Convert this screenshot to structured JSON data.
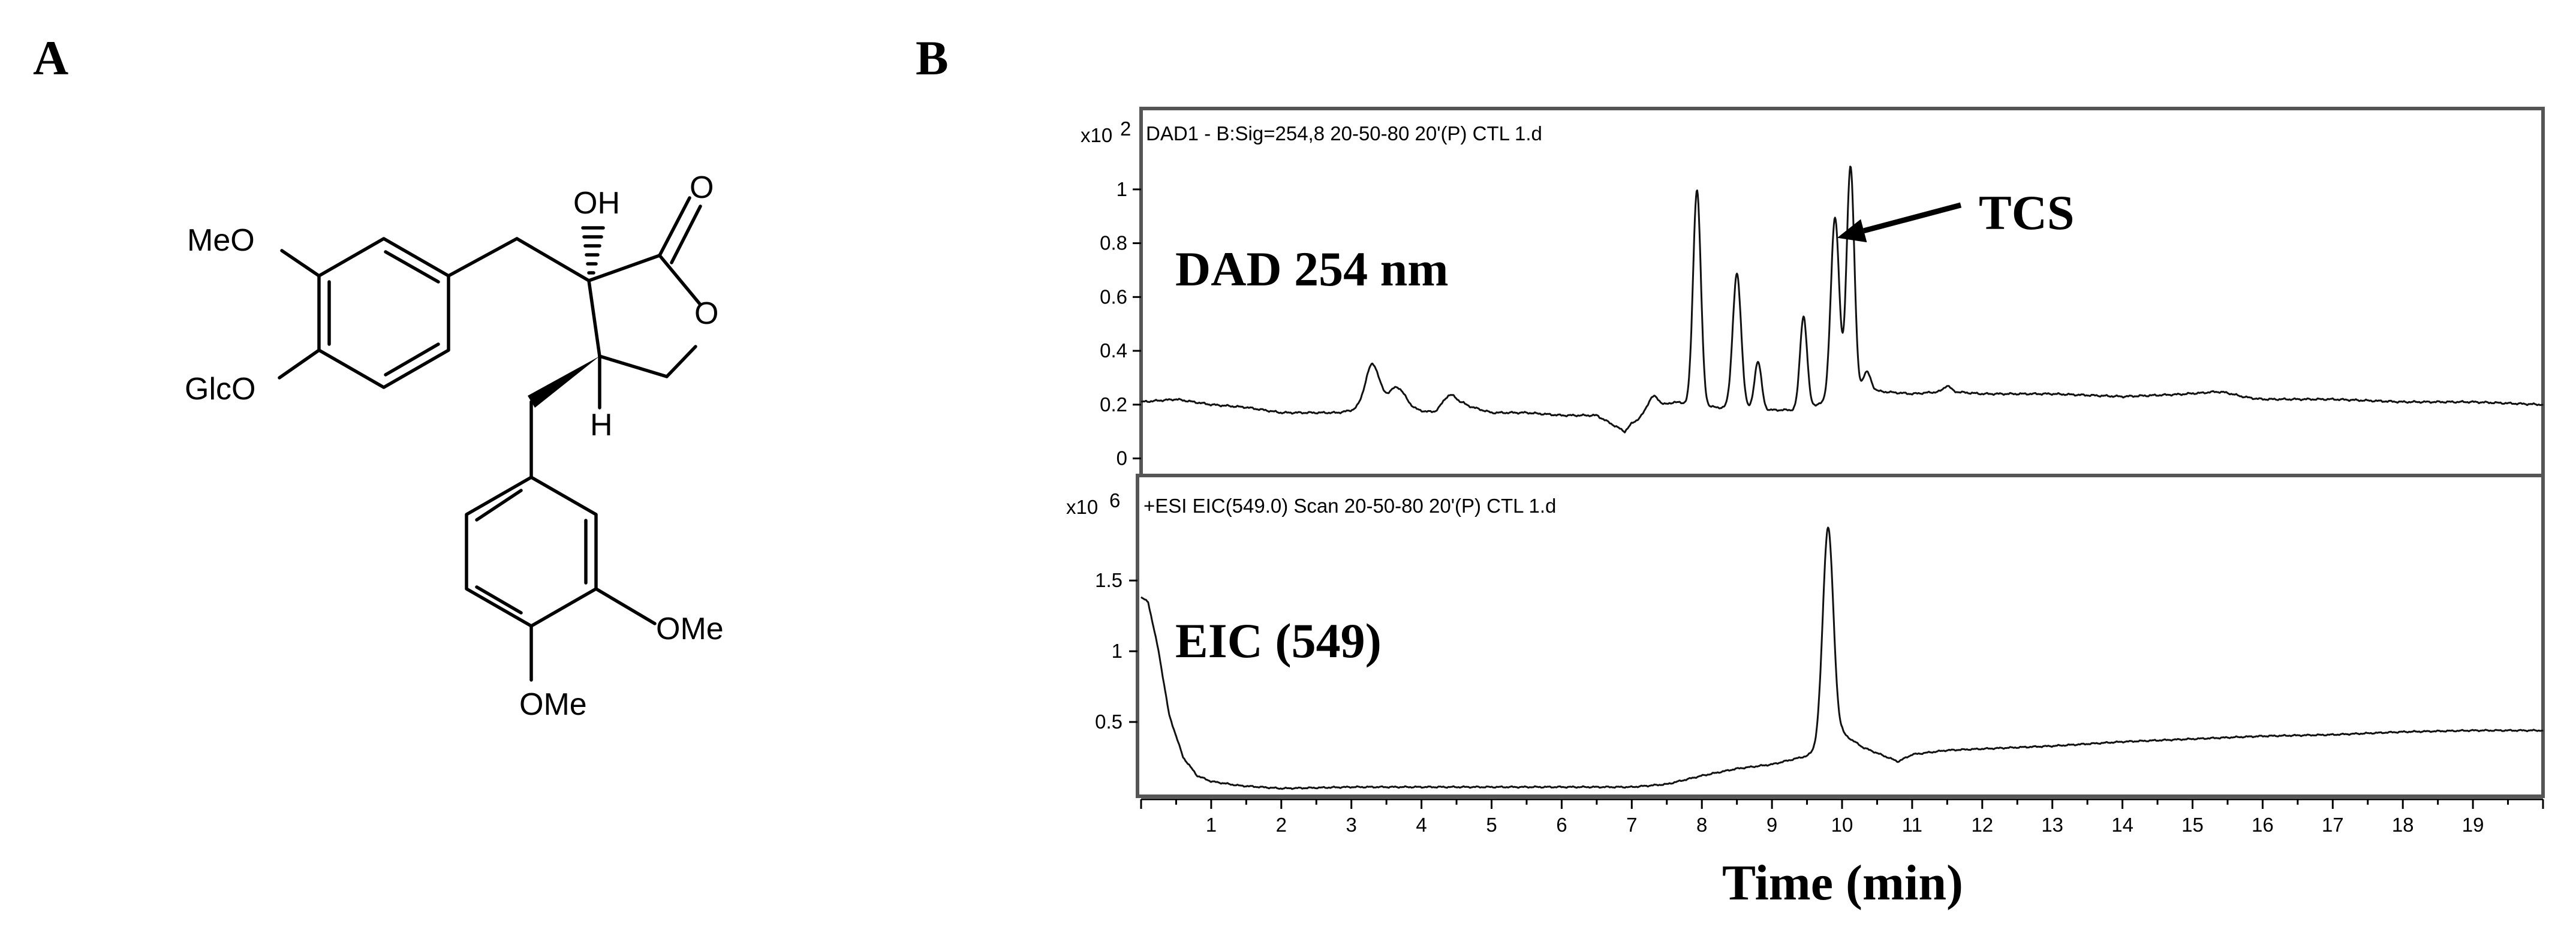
{
  "panels": {
    "a_label": "A",
    "b_label": "B"
  },
  "structure": {
    "atoms": {
      "meo_top": "MeO",
      "glco": "GlcO",
      "oh": "OH",
      "o_carbonyl": "O",
      "o_ring": "O",
      "h": "H",
      "ome_right": "OMe",
      "ome_bottom": "OMe"
    }
  },
  "chart_data": [
    {
      "type": "line",
      "header": "DAD1 - B:Sig=254,8 20-50-80 20'(P) CTL 1.d",
      "label": "DAD 254 nm",
      "exponent_base": "x10",
      "exponent_power": "2",
      "xlim": [
        0,
        20
      ],
      "ylim": [
        -0.05,
        1.12
      ],
      "y_ticks": [
        "0",
        "0.2",
        "0.4",
        "0.6",
        "0.8",
        "1"
      ],
      "baseline": [
        [
          0.0,
          0.21
        ],
        [
          0.5,
          0.22
        ],
        [
          1.0,
          0.2
        ],
        [
          1.5,
          0.19
        ],
        [
          2.0,
          0.17
        ],
        [
          2.5,
          0.17
        ],
        [
          2.8,
          0.17
        ],
        [
          3.3,
          0.19
        ],
        [
          3.9,
          0.18
        ],
        [
          4.2,
          0.17
        ],
        [
          4.6,
          0.2
        ],
        [
          5.0,
          0.17
        ],
        [
          5.5,
          0.17
        ],
        [
          6.0,
          0.16
        ],
        [
          6.5,
          0.16
        ],
        [
          6.9,
          0.1
        ],
        [
          7.0,
          0.13
        ],
        [
          7.3,
          0.18
        ],
        [
          7.6,
          0.21
        ],
        [
          8.2,
          0.19
        ],
        [
          8.8,
          0.18
        ],
        [
          9.3,
          0.18
        ],
        [
          10.5,
          0.25
        ],
        [
          11.0,
          0.24
        ],
        [
          11.5,
          0.25
        ],
        [
          12.0,
          0.24
        ],
        [
          13.0,
          0.24
        ],
        [
          14.0,
          0.23
        ],
        [
          15.0,
          0.24
        ],
        [
          16.0,
          0.22
        ],
        [
          17.0,
          0.22
        ],
        [
          18.0,
          0.21
        ],
        [
          19.0,
          0.21
        ],
        [
          20.0,
          0.2
        ]
      ],
      "peaks": [
        {
          "rt": 3.3,
          "height": 0.16,
          "width": 0.1
        },
        {
          "rt": 3.65,
          "height": 0.08,
          "width": 0.12
        },
        {
          "rt": 4.4,
          "height": 0.05,
          "width": 0.1
        },
        {
          "rt": 7.3,
          "height": 0.05,
          "width": 0.08
        },
        {
          "rt": 7.93,
          "height": 0.8,
          "width": 0.055
        },
        {
          "rt": 8.5,
          "height": 0.5,
          "width": 0.06
        },
        {
          "rt": 8.8,
          "height": 0.18,
          "width": 0.05
        },
        {
          "rt": 9.45,
          "height": 0.34,
          "width": 0.05
        },
        {
          "rt": 9.9,
          "height": 0.68,
          "width": 0.06
        },
        {
          "rt": 10.12,
          "height": 0.86,
          "width": 0.055
        },
        {
          "rt": 10.35,
          "height": 0.08,
          "width": 0.06
        },
        {
          "rt": 11.5,
          "height": 0.02,
          "width": 0.05
        },
        {
          "rt": 15.4,
          "height": 0.015,
          "width": 0.2
        }
      ],
      "annotation": {
        "text": "TCS",
        "rt": 9.93,
        "value": 0.82
      }
    },
    {
      "type": "line",
      "header": "+ESI EIC(549.0) Scan 20-50-80 20'(P) CTL 1.d",
      "label": "EIC (549)",
      "exponent_base": "x10",
      "exponent_power": "6",
      "xlim": [
        0,
        20
      ],
      "ylim": [
        0,
        1.95
      ],
      "y_ticks": [
        "0.5",
        "1",
        "1.5"
      ],
      "baseline": [
        [
          0.0,
          1.38
        ],
        [
          0.1,
          1.35
        ],
        [
          0.25,
          1.0
        ],
        [
          0.4,
          0.55
        ],
        [
          0.6,
          0.25
        ],
        [
          0.8,
          0.12
        ],
        [
          1.0,
          0.08
        ],
        [
          1.4,
          0.05
        ],
        [
          2.0,
          0.03
        ],
        [
          3.0,
          0.04
        ],
        [
          4.0,
          0.04
        ],
        [
          5.0,
          0.04
        ],
        [
          6.0,
          0.04
        ],
        [
          7.0,
          0.04
        ],
        [
          7.5,
          0.06
        ],
        [
          8.0,
          0.12
        ],
        [
          8.5,
          0.17
        ],
        [
          9.0,
          0.2
        ],
        [
          9.5,
          0.26
        ],
        [
          10.0,
          0.42
        ],
        [
          10.3,
          0.32
        ],
        [
          10.5,
          0.28
        ],
        [
          10.8,
          0.22
        ],
        [
          11.0,
          0.27
        ],
        [
          11.5,
          0.3
        ],
        [
          12.0,
          0.31
        ],
        [
          13.0,
          0.33
        ],
        [
          14.0,
          0.36
        ],
        [
          15.0,
          0.38
        ],
        [
          16.0,
          0.4
        ],
        [
          17.0,
          0.41
        ],
        [
          18.0,
          0.43
        ],
        [
          19.0,
          0.44
        ],
        [
          20.0,
          0.44
        ]
      ],
      "peaks": [
        {
          "rt": 9.8,
          "height": 1.52,
          "width": 0.075
        }
      ]
    }
  ],
  "x_axis": {
    "title": "Time (min)",
    "tick_labels": [
      "1",
      "2",
      "3",
      "4",
      "5",
      "6",
      "7",
      "8",
      "9",
      "10",
      "11",
      "12",
      "13",
      "14",
      "15",
      "16",
      "17",
      "18",
      "19"
    ]
  }
}
